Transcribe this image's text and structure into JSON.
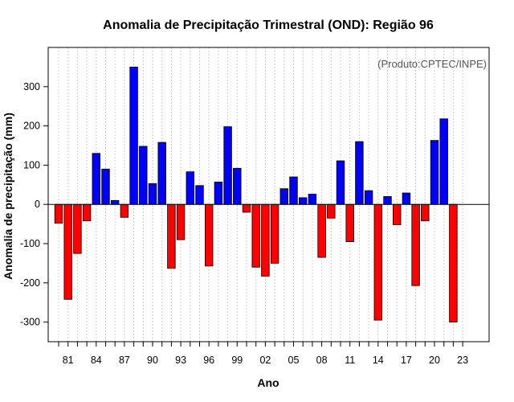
{
  "chart_data": {
    "type": "bar",
    "title": "Anomalia de Precipitação Trimestral (OND): Região 96",
    "xlabel": "Ano",
    "ylabel": "Anomalia de precipitação (mm)",
    "credit": "(Produto:CPTEC/INPE)",
    "ylim": [
      -350,
      400
    ],
    "yticks": [
      -300,
      -200,
      -100,
      0,
      100,
      200,
      300
    ],
    "xtick_labels": [
      "81",
      "84",
      "87",
      "90",
      "93",
      "96",
      "99",
      "02",
      "05",
      "08",
      "11",
      "14",
      "17",
      "20",
      "23"
    ],
    "grid": "vertical dotted",
    "positive_color": "#0000ff",
    "negative_color": "#ff0000",
    "categories": [
      1980,
      1981,
      1982,
      1983,
      1984,
      1985,
      1986,
      1987,
      1988,
      1989,
      1990,
      1991,
      1992,
      1993,
      1994,
      1995,
      1996,
      1997,
      1998,
      1999,
      2000,
      2001,
      2002,
      2003,
      2004,
      2005,
      2006,
      2007,
      2008,
      2009,
      2010,
      2011,
      2012,
      2013,
      2014,
      2015,
      2016,
      2017,
      2018,
      2019,
      2020,
      2021,
      2022,
      2023
    ],
    "values": [
      -48,
      -242,
      -125,
      -42,
      130,
      90,
      10,
      -33,
      350,
      148,
      53,
      158,
      -163,
      -90,
      83,
      48,
      -157,
      57,
      198,
      92,
      -20,
      -160,
      -183,
      -150,
      40,
      70,
      17,
      26,
      -135,
      -35,
      111,
      -95,
      160,
      35,
      -295,
      20,
      -52,
      29,
      -207,
      -42,
      163,
      218,
      -300,
      0
    ]
  }
}
